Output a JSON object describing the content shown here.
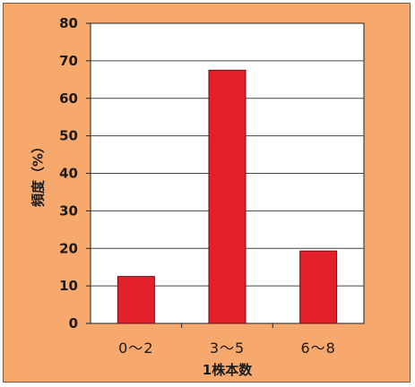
{
  "chart_data": {
    "type": "bar",
    "categories": [
      "0～2",
      "3～5",
      "6～8"
    ],
    "values": [
      12.5,
      67.5,
      19.3
    ],
    "xlabel": "1株本数",
    "ylabel": "頻度（%）",
    "ylim": [
      0,
      80
    ],
    "yticks": [
      0,
      10,
      20,
      30,
      40,
      50,
      60,
      70,
      80
    ],
    "grid": true,
    "legend": "none",
    "colors": {
      "bar_fill": "#e3202a",
      "bar_stroke": "#6b0d12",
      "plot_background": "#ffffff",
      "frame_background": "#f7a86c",
      "gridline": "#444444"
    }
  }
}
